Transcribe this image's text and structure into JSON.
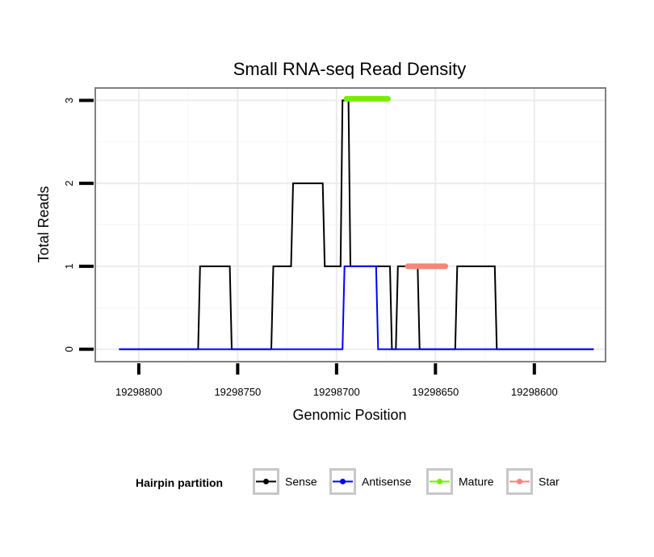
{
  "chart_data": {
    "type": "line",
    "title": "Small RNA-seq Read Density",
    "xlabel": "Genomic Position",
    "ylabel": "Total Reads",
    "x_reversed": true,
    "xlim": [
      19298822,
      19298564
    ],
    "ylim": [
      -0.15,
      3.15
    ],
    "x_ticks": [
      19298800,
      19298750,
      19298700,
      19298650,
      19298600
    ],
    "x_tick_labels": [
      "19298800",
      "19298750",
      "19298700",
      "19298650",
      "19298600"
    ],
    "y_ticks": [
      0,
      1,
      2,
      3
    ],
    "y_tick_labels": [
      "0",
      "1",
      "2",
      "3"
    ],
    "grid": true,
    "legend": {
      "title": "Hairpin partition",
      "position": "bottom",
      "entries": [
        "Sense",
        "Antisense",
        "Mature",
        "Star"
      ]
    },
    "series": [
      {
        "name": "Sense",
        "color": "#000000",
        "x": [
          19298810,
          19298770,
          19298769,
          19298754,
          19298753,
          19298733,
          19298732,
          19298723,
          19298722,
          19298707,
          19298706,
          19298698,
          19298697,
          19298694,
          19298693,
          19298673,
          19298672,
          19298670,
          19298669,
          19298665,
          19298664,
          19298659,
          19298658,
          19298640,
          19298639,
          19298620,
          19298619,
          19298595,
          19298594,
          19298570
        ],
        "y": [
          0,
          0,
          1,
          1,
          0,
          0,
          1,
          1,
          2,
          2,
          1,
          1,
          3,
          3,
          1,
          1,
          0,
          0,
          1,
          1,
          1,
          1,
          0,
          0,
          1,
          1,
          0,
          0,
          0,
          0
        ]
      },
      {
        "name": "Antisense",
        "color": "#0000ff",
        "x": [
          19298810,
          19298697,
          19298696,
          19298680,
          19298679,
          19298570
        ],
        "y": [
          0,
          0,
          1,
          1,
          0,
          0
        ]
      },
      {
        "name": "Mature",
        "color": "#77ee00",
        "x": [
          19298695,
          19298674
        ],
        "y": [
          3.02,
          3.02
        ]
      },
      {
        "name": "Star",
        "color": "#f4857a",
        "x": [
          19298664,
          19298645
        ],
        "y": [
          1.0,
          1.0
        ]
      }
    ]
  }
}
